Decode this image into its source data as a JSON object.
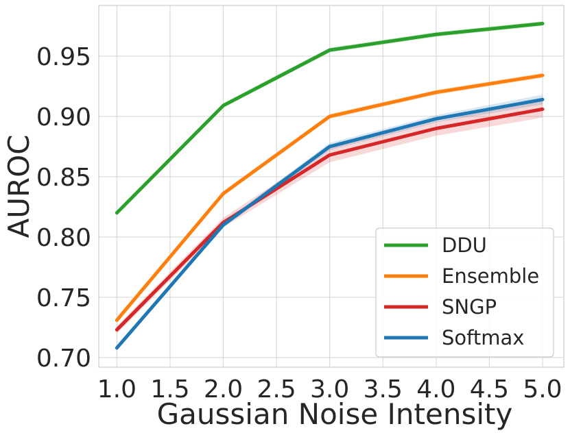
{
  "chart_data": {
    "type": "line",
    "title": "",
    "xlabel": "Gaussian Noise Intensity",
    "ylabel": "AUROC",
    "x": [
      1.0,
      2.0,
      3.0,
      4.0,
      5.0
    ],
    "xlim": [
      0.83,
      5.2
    ],
    "ylim": [
      0.692,
      0.992
    ],
    "xticks": [
      1.0,
      1.5,
      2.0,
      2.5,
      3.0,
      3.5,
      4.0,
      4.5,
      5.0
    ],
    "xtick_labels": [
      "1.0",
      "1.5",
      "2.0",
      "2.5",
      "3.0",
      "3.5",
      "4.0",
      "4.5",
      "5.0"
    ],
    "yticks": [
      0.7,
      0.75,
      0.8,
      0.85,
      0.9,
      0.95
    ],
    "ytick_labels": [
      "0.70",
      "0.75",
      "0.80",
      "0.85",
      "0.90",
      "0.95"
    ],
    "grid": true,
    "legend_position": "bottom-right",
    "series": [
      {
        "name": "DDU",
        "color": "#2ca02c",
        "values": [
          0.82,
          0.909,
          0.955,
          0.968,
          0.977
        ],
        "band": [
          0.002,
          0.002,
          0.002,
          0.002,
          0.002
        ]
      },
      {
        "name": "Ensemble",
        "color": "#ff7f0e",
        "values": [
          0.731,
          0.836,
          0.9,
          0.92,
          0.934
        ],
        "band": [
          0.002,
          0.002,
          0.002,
          0.002,
          0.002
        ]
      },
      {
        "name": "SNGP",
        "color": "#d62728",
        "values": [
          0.723,
          0.812,
          0.868,
          0.89,
          0.906
        ],
        "band": [
          0.003,
          0.004,
          0.006,
          0.006,
          0.007
        ]
      },
      {
        "name": "Softmax",
        "color": "#1f77b4",
        "values": [
          0.708,
          0.81,
          0.875,
          0.898,
          0.914
        ],
        "band": [
          0.002,
          0.002,
          0.003,
          0.003,
          0.004
        ]
      }
    ]
  }
}
